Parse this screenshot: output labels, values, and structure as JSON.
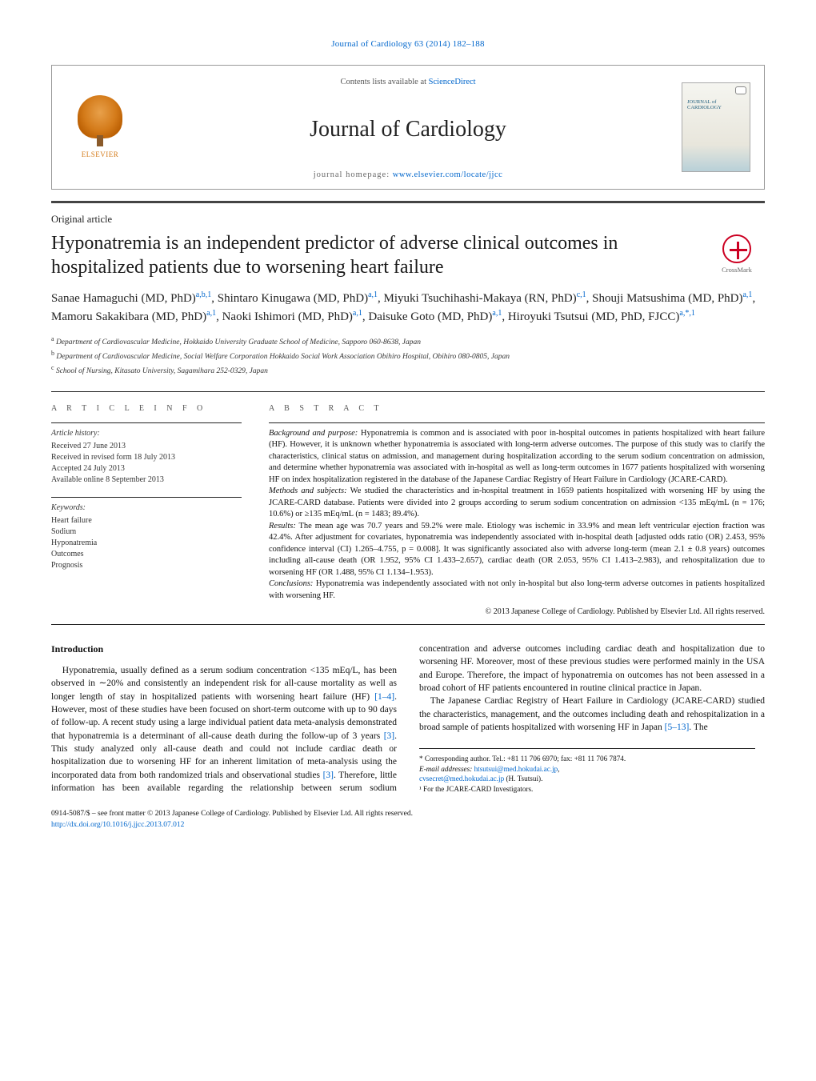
{
  "running_head": "Journal of Cardiology 63 (2014) 182–188",
  "header": {
    "contents_prefix": "Contents lists available at ",
    "contents_link": "ScienceDirect",
    "journal_name": "Journal of Cardiology",
    "homepage_prefix": "journal homepage: ",
    "homepage_link": "www.elsevier.com/locate/jjcc",
    "elsevier_label": "ELSEVIER",
    "cover_title_line1": "JOURNAL of",
    "cover_title_line2": "CARDIOLOGY"
  },
  "article_type": "Original article",
  "title": "Hyponatremia is an independent predictor of adverse clinical outcomes in hospitalized patients due to worsening heart failure",
  "crossmark_label": "CrossMark",
  "authors_html": "Sanae Hamaguchi (MD, PhD)<sup>a,b,1</sup>, Shintaro Kinugawa (MD, PhD)<sup>a,1</sup>, Miyuki Tsuchihashi-Makaya (RN, PhD)<sup>c,1</sup>, Shouji Matsushima (MD, PhD)<sup>a,1</sup>, Mamoru Sakakibara (MD, PhD)<sup>a,1</sup>, Naoki Ishimori (MD, PhD)<sup>a,1</sup>, Daisuke Goto (MD, PhD)<sup>a,1</sup>, Hiroyuki Tsutsui (MD, PhD, FJCC)<sup>a,*,1</sup>",
  "affiliations": [
    {
      "sup": "a",
      "text": "Department of Cardiovascular Medicine, Hokkaido University Graduate School of Medicine, Sapporo 060-8638, Japan"
    },
    {
      "sup": "b",
      "text": "Department of Cardiovascular Medicine, Social Welfare Corporation Hokkaido Social Work Association Obihiro Hospital, Obihiro 080-0805, Japan"
    },
    {
      "sup": "c",
      "text": "School of Nursing, Kitasato University, Sagamihara 252-0329, Japan"
    }
  ],
  "info_heading": "a r t i c l e   i n f o",
  "article_history": {
    "heading": "Article history:",
    "received": "Received 27 June 2013",
    "revised": "Received in revised form 18 July 2013",
    "accepted": "Accepted 24 July 2013",
    "online": "Available online 8 September 2013"
  },
  "keywords": {
    "heading": "Keywords:",
    "items": [
      "Heart failure",
      "Sodium",
      "Hyponatremia",
      "Outcomes",
      "Prognosis"
    ]
  },
  "abstract_heading": "a b s t r a c t",
  "abstract": {
    "bg_label": "Background and purpose:",
    "bg_text": " Hyponatremia is common and is associated with poor in-hospital outcomes in patients hospitalized with heart failure (HF). However, it is unknown whether hyponatremia is associated with long-term adverse outcomes. The purpose of this study was to clarify the characteristics, clinical status on admission, and management during hospitalization according to the serum sodium concentration on admission, and determine whether hyponatremia was associated with in-hospital as well as long-term outcomes in 1677 patients hospitalized with worsening HF on index hospitalization registered in the database of the Japanese Cardiac Registry of Heart Failure in Cardiology (JCARE-CARD).",
    "methods_label": "Methods and subjects:",
    "methods_text": " We studied the characteristics and in-hospital treatment in 1659 patients hospitalized with worsening HF by using the JCARE-CARD database. Patients were divided into 2 groups according to serum sodium concentration on admission <135 mEq/mL (n = 176; 10.6%) or ≥135 mEq/mL (n = 1483; 89.4%).",
    "results_label": "Results:",
    "results_text": " The mean age was 70.7 years and 59.2% were male. Etiology was ischemic in 33.9% and mean left ventricular ejection fraction was 42.4%. After adjustment for covariates, hyponatremia was independently associated with in-hospital death [adjusted odds ratio (OR) 2.453, 95% confidence interval (CI) 1.265–4.755, p = 0.008]. It was significantly associated also with adverse long-term (mean 2.1 ± 0.8 years) outcomes including all-cause death (OR 1.952, 95% CI 1.433–2.657), cardiac death (OR 2.053, 95% CI 1.413–2.983), and rehospitalization due to worsening HF (OR 1.488, 95% CI 1.134–1.953).",
    "concl_label": "Conclusions:",
    "concl_text": " Hyponatremia was independently associated with not only in-hospital but also long-term adverse outcomes in patients hospitalized with worsening HF.",
    "copyright": "© 2013 Japanese College of Cardiology. Published by Elsevier Ltd. All rights reserved."
  },
  "body": {
    "intro_heading": "Introduction",
    "p1a": "Hyponatremia, usually defined as a serum sodium concentration <135 mEq/L, has been observed in ∼20% and consistently an independent risk for all-cause mortality as well as longer length of stay in hospitalized patients with worsening heart failure (HF) ",
    "ref1": "[1–4]",
    "p1b": ". However, most of these studies have been focused on short-term outcome with up to 90 days of follow-up. A recent study using a large individual patient data meta-analysis demonstrated that hyponatremia is a determinant of all-cause death during the follow-",
    "p2a": "up of 3 years ",
    "ref2": "[3]",
    "p2b": ". This study analyzed only all-cause death and could not include cardiac death or hospitalization due to worsening HF for an inherent limitation of meta-analysis using the incorporated data from both randomized trials and observational studies ",
    "ref3": "[3]",
    "p2c": ". Therefore, little information has been available regarding the relationship between serum sodium concentration and adverse outcomes including cardiac death and hospitalization due to worsening HF. Moreover, most of these previous studies were performed mainly in the USA and Europe. Therefore, the impact of hyponatremia on outcomes has not been assessed in a broad cohort of HF patients encountered in routine clinical practice in Japan.",
    "p3a": "The Japanese Cardiac Registry of Heart Failure in Cardiology (JCARE-CARD) studied the characteristics, management, and the outcomes including death and rehospitalization in a broad sample of patients hospitalized with worsening HF in Japan ",
    "ref4": "[5–13]",
    "p3b": ". The"
  },
  "footnotes": {
    "corr": "* Corresponding author. Tel.: +81 11 706 6970; fax: +81 11 706 7874.",
    "email_label": "E-mail addresses: ",
    "email1": "htsutsui@med.hokudai.ac.jp",
    "email_sep": ", ",
    "email2": "cvsecret@med.hokudai.ac.jp",
    "email_tail": " (H. Tsutsui).",
    "inv": "¹ For the JCARE-CARD Investigators."
  },
  "footer": {
    "line1": "0914-5087/$ – see front matter © 2013 Japanese College of Cardiology. Published by Elsevier Ltd. All rights reserved.",
    "doi": "http://dx.doi.org/10.1016/j.jjcc.2013.07.012"
  },
  "colors": {
    "link": "#0066cc",
    "rule": "#444444",
    "text": "#111111"
  }
}
